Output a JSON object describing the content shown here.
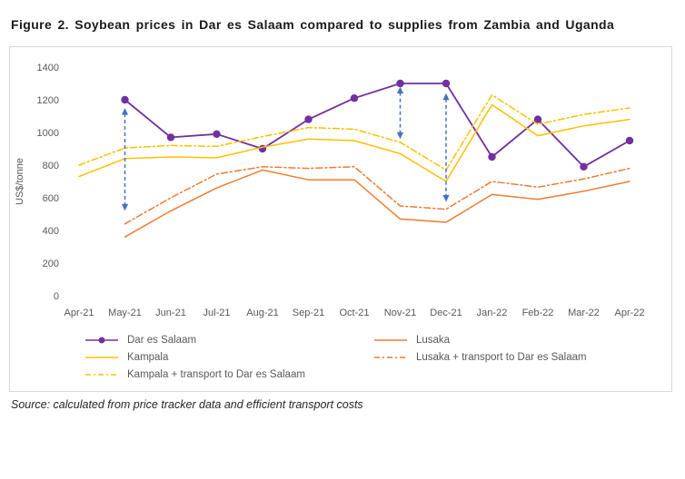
{
  "figure": {
    "title": "Figure 2. Soybean prices in Dar es Salaam compared to supplies from Zambia and Uganda",
    "source": "Source: calculated from price tracker data and efficient transport costs"
  },
  "chart_data": {
    "type": "line",
    "title": "",
    "xlabel": "",
    "ylabel": "US$/tonne",
    "ylim": [
      0,
      1400
    ],
    "ytick_step": 200,
    "grid": false,
    "legend_position": "bottom",
    "categories": [
      "Apr-21",
      "May-21",
      "Jun-21",
      "Jul-21",
      "Aug-21",
      "Sep-21",
      "Oct-21",
      "Nov-21",
      "Dec-21",
      "Jan-22",
      "Feb-22",
      "Mar-22",
      "Apr-22"
    ],
    "series": [
      {
        "name": "Dar es Salaam",
        "color": "#7030A0",
        "style": "solid",
        "marker": "circle",
        "values": [
          null,
          1200,
          970,
          990,
          900,
          1080,
          1210,
          1300,
          1300,
          850,
          1080,
          790,
          950
        ]
      },
      {
        "name": "Lusaka",
        "color": "#ED7D31",
        "style": "solid",
        "marker": "none",
        "values": [
          null,
          360,
          520,
          660,
          770,
          710,
          710,
          470,
          450,
          620,
          590,
          640,
          700
        ]
      },
      {
        "name": "Kampala",
        "color": "#FFC000",
        "style": "solid",
        "marker": "none",
        "values": [
          730,
          840,
          850,
          845,
          910,
          960,
          950,
          870,
          700,
          1170,
          980,
          1040,
          1080
        ]
      },
      {
        "name": "Lusaka + transport to Dar es Salaam",
        "color": "#ED7D31",
        "style": "dashdot",
        "marker": "none",
        "values": [
          null,
          440,
          600,
          745,
          790,
          780,
          790,
          550,
          530,
          700,
          665,
          715,
          780
        ]
      },
      {
        "name": "Kampala + transport to Dar es Salaam",
        "color": "#FFC000",
        "style": "dashdot",
        "marker": "none",
        "values": [
          800,
          905,
          920,
          915,
          975,
          1030,
          1020,
          940,
          770,
          1230,
          1050,
          1110,
          1150
        ]
      }
    ],
    "annotations": [
      {
        "type": "double-arrow",
        "category": "May-21",
        "y1": 520,
        "y2": 1150,
        "color": "#4472C4"
      },
      {
        "type": "double-arrow",
        "category": "Nov-21",
        "y1": 960,
        "y2": 1280,
        "color": "#4472C4"
      },
      {
        "type": "double-arrow",
        "category": "Dec-21",
        "y1": 575,
        "y2": 1240,
        "color": "#4472C4"
      }
    ],
    "axis_text_color": "#595959"
  }
}
